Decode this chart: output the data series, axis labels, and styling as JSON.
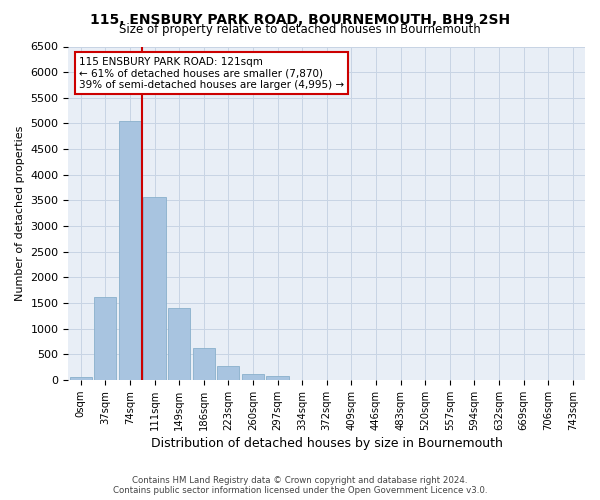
{
  "title1": "115, ENSBURY PARK ROAD, BOURNEMOUTH, BH9 2SH",
  "title2": "Size of property relative to detached houses in Bournemouth",
  "xlabel": "Distribution of detached houses by size in Bournemouth",
  "ylabel": "Number of detached properties",
  "footnote1": "Contains HM Land Registry data © Crown copyright and database right 2024.",
  "footnote2": "Contains public sector information licensed under the Open Government Licence v3.0.",
  "bar_labels": [
    "0sqm",
    "37sqm",
    "74sqm",
    "111sqm",
    "149sqm",
    "186sqm",
    "223sqm",
    "260sqm",
    "297sqm",
    "334sqm",
    "372sqm",
    "409sqm",
    "446sqm",
    "483sqm",
    "520sqm",
    "557sqm",
    "594sqm",
    "632sqm",
    "669sqm",
    "706sqm",
    "743sqm"
  ],
  "bar_values": [
    50,
    1620,
    5050,
    3570,
    1410,
    620,
    270,
    120,
    75,
    0,
    0,
    0,
    0,
    0,
    0,
    0,
    0,
    0,
    0,
    0,
    0
  ],
  "bar_color": "#a8c4e0",
  "bar_edge_color": "#8ab0cc",
  "vline_x_index": 3,
  "vline_color": "#cc0000",
  "annotation_line1": "115 ENSBURY PARK ROAD: 121sqm",
  "annotation_line2": "← 61% of detached houses are smaller (7,870)",
  "annotation_line3": "39% of semi-detached houses are larger (4,995) →",
  "annotation_box_facecolor": "#ffffff",
  "annotation_box_edgecolor": "#cc0000",
  "ylim_max": 6500,
  "yticks": [
    0,
    500,
    1000,
    1500,
    2000,
    2500,
    3000,
    3500,
    4000,
    4500,
    5000,
    5500,
    6000,
    6500
  ],
  "grid_color": "#c8d4e4",
  "background_color": "#e8eef6"
}
